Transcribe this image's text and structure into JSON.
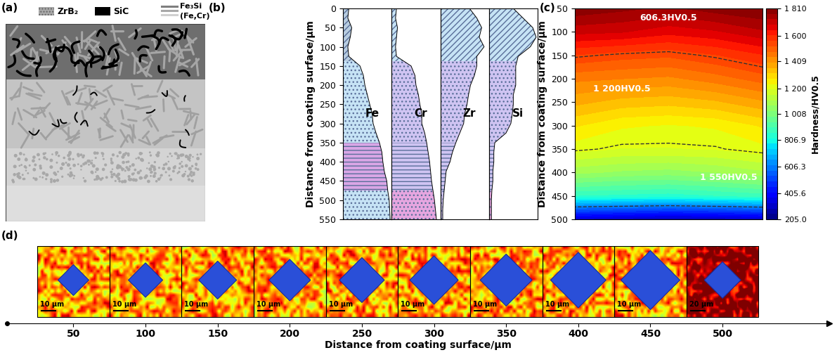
{
  "chart_data": [
    {
      "type": "diagram",
      "panel_label": "(a)",
      "legend": [
        {
          "label": "ZrB₂",
          "color": "#a9a9a9"
        },
        {
          "label": "SiC",
          "color": "#000000"
        },
        {
          "label": "Fe₃Si",
          "color": "#7f7f7f"
        },
        {
          "label": "(Fe,Cr)",
          "color": "#d0d0d0"
        }
      ]
    },
    {
      "type": "area",
      "panel_label": "(b)",
      "ylabel": "Distance from coating surface/μm",
      "ylim": [
        550,
        0
      ],
      "yticks": [
        0,
        50,
        100,
        150,
        200,
        250,
        300,
        350,
        400,
        450,
        500,
        550
      ],
      "xlim": [
        0,
        1
      ],
      "tick_labels": "y",
      "depth": [
        0,
        25,
        50,
        75,
        100,
        125,
        150,
        175,
        200,
        225,
        250,
        275,
        300,
        325,
        350,
        375,
        400,
        425,
        450,
        475,
        500,
        525,
        550
      ],
      "band_edges": [
        0,
        137.5,
        350,
        475,
        550
      ],
      "series": [
        {
          "name": "Fe",
          "colors": [
            "#b8cde0",
            "#c6e3f5",
            "#d9a6e6",
            "#c6e3f5"
          ],
          "values": [
            0.12,
            0.1,
            0.18,
            0.15,
            0.1,
            0.12,
            0.35,
            0.42,
            0.45,
            0.5,
            0.55,
            0.6,
            0.62,
            0.68,
            0.75,
            0.8,
            0.82,
            0.85,
            0.9,
            0.92,
            0.95,
            0.96,
            0.97
          ]
        },
        {
          "name": "Cr",
          "colors": [
            "#c6e3f5",
            "#cfc4f2",
            "#cfc4f2",
            "#e6a6e0"
          ],
          "values": [
            0.1,
            0.08,
            0.12,
            0.1,
            0.08,
            0.1,
            0.4,
            0.48,
            0.5,
            0.55,
            0.58,
            0.62,
            0.62,
            0.68,
            0.72,
            0.75,
            0.78,
            0.8,
            0.82,
            0.85,
            0.88,
            0.9,
            0.92
          ]
        },
        {
          "name": "Zr",
          "colors": [
            "#c6e3f5",
            "#cfc4f2",
            "#cfc4f2",
            "#cfc4f2"
          ],
          "values": [
            0.6,
            0.75,
            0.85,
            0.8,
            0.9,
            0.75,
            0.75,
            0.7,
            0.62,
            0.58,
            0.55,
            0.5,
            0.48,
            0.4,
            0.32,
            0.25,
            0.2,
            0.12,
            0.1,
            0.08,
            0.06,
            0.05,
            0.05
          ]
        },
        {
          "name": "Si",
          "colors": [
            "#c6e3f5",
            "#cfc4f2",
            "#cfc4f2",
            "#e6a6e0"
          ],
          "values": [
            0.5,
            0.7,
            0.9,
            0.97,
            0.85,
            0.6,
            0.55,
            0.55,
            0.55,
            0.5,
            0.5,
            0.48,
            0.45,
            0.35,
            0.12,
            0.1,
            0.1,
            0.08,
            0.08,
            0.06,
            0.05,
            0.05,
            0.05
          ]
        }
      ]
    },
    {
      "type": "contour",
      "panel_label": "(c)",
      "ylabel": "Distance from coating surface/μm",
      "ylim": [
        500,
        50
      ],
      "yticks": [
        50,
        100,
        150,
        200,
        250,
        300,
        350,
        400,
        450,
        500
      ],
      "tick_labels": "y",
      "depth": [
        50,
        100,
        150,
        200,
        250,
        300,
        350,
        400,
        450,
        500
      ],
      "hardness": [
        [
          1800,
          1780,
          1760,
          1790,
          1810
        ],
        [
          1700,
          1690,
          1660,
          1680,
          1720
        ],
        [
          1560,
          1540,
          1530,
          1560,
          1600
        ],
        [
          1450,
          1440,
          1430,
          1460,
          1500
        ],
        [
          1370,
          1340,
          1330,
          1350,
          1390
        ],
        [
          1280,
          1240,
          1230,
          1240,
          1280
        ],
        [
          1210,
          1190,
          1190,
          1195,
          1220
        ],
        [
          1080,
          1060,
          1050,
          1070,
          1100
        ],
        [
          860,
          850,
          840,
          860,
          880
        ],
        [
          320,
          300,
          280,
          290,
          310
        ]
      ],
      "colorbar_label": "Hardness/HV0.5",
      "colorbar_range": [
        205.0,
        1810
      ],
      "colorbar_ticks": [
        205.0,
        405.6,
        606.3,
        806.9,
        {
          "value": 1008,
          "label": "1 008"
        },
        {
          "value": 1200,
          "label": "1 200"
        },
        {
          "value": 1409,
          "label": "1 409"
        },
        {
          "value": 1600,
          "label": "1 600"
        },
        {
          "value": 1810,
          "label": "1 810"
        }
      ],
      "contour_levels": [
        606.3,
        1200,
        1550
      ],
      "contour_labels": [
        "606.3HV0.5",
        "1 200HV0.5",
        "1 550HV0.5"
      ]
    },
    {
      "type": "image_strip",
      "panel_label": "(d)",
      "xlabel": "Distance from coating surface/μm",
      "x": [
        50,
        100,
        150,
        200,
        250,
        300,
        350,
        400,
        450,
        500
      ],
      "scale_bars": [
        "10 μm",
        "10 μm",
        "10 μm",
        "10 μm",
        "10 μm",
        "10 μm",
        "10 μm",
        "10 μm",
        "10 μm",
        "20 μm"
      ],
      "xlim": [
        4,
        574
      ],
      "xticks": [
        50,
        100,
        150,
        200,
        250,
        300,
        350,
        400,
        450,
        500
      ],
      "tick_labels": "x"
    }
  ]
}
